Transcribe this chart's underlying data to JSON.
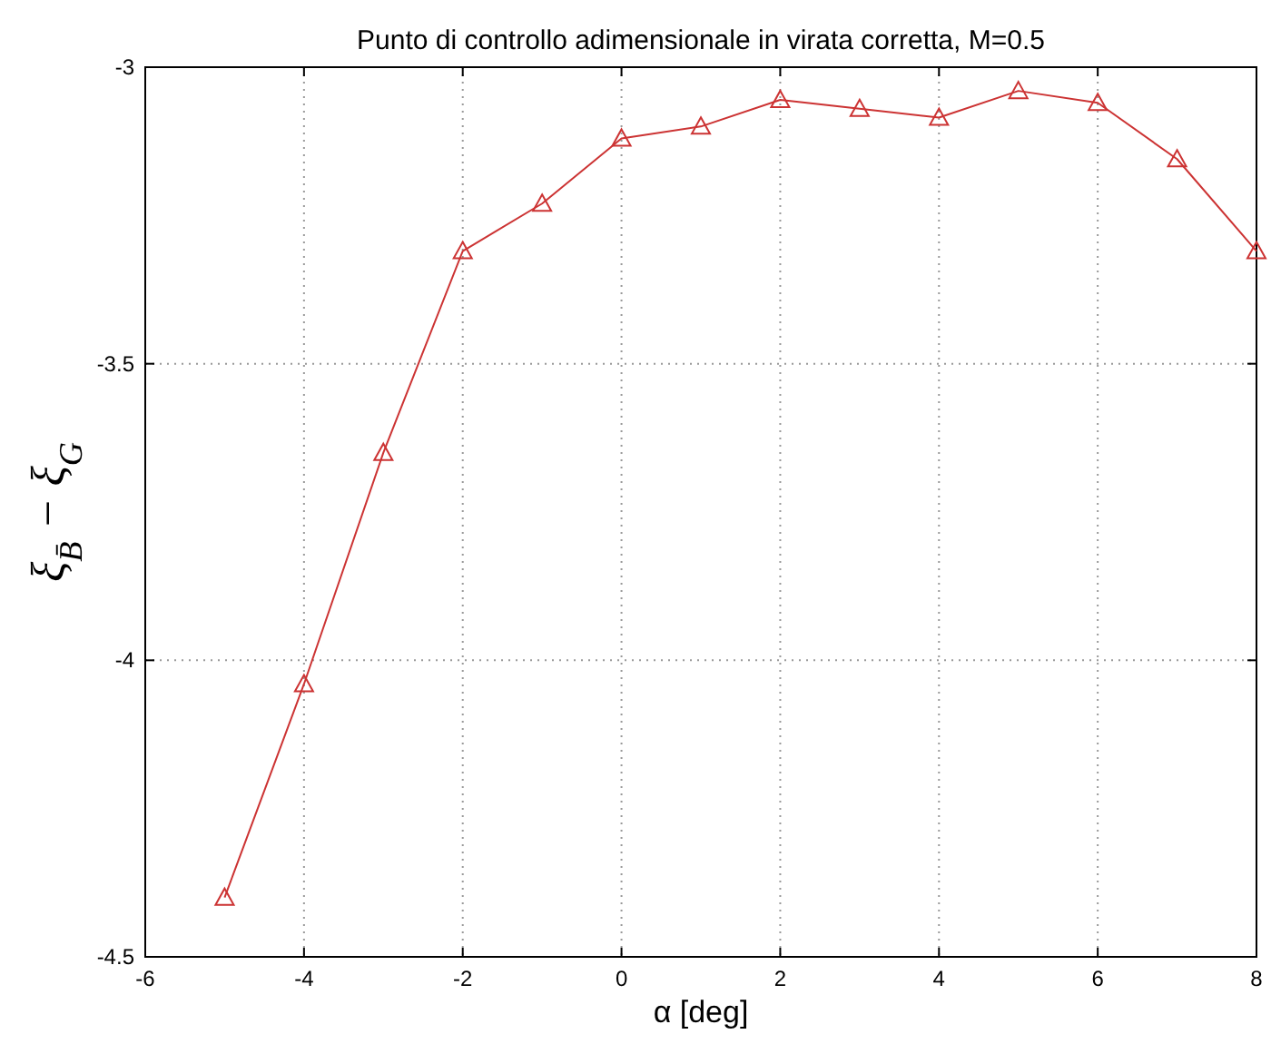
{
  "chart_data": {
    "type": "line",
    "title": "Punto di controllo adimensionale in virata corretta, M=0.5",
    "xlabel": "α  [deg]",
    "ylabel": "ξ$_{B̄}$ − ξ$_{G}$",
    "x": [
      -5,
      -4,
      -3,
      -2,
      -1,
      0,
      1,
      2,
      3,
      4,
      5,
      6,
      7,
      8
    ],
    "series": [
      {
        "color": "#cc3333",
        "values": [
          -4.4,
          -4.04,
          -3.65,
          -3.31,
          -3.23,
          -3.12,
          -3.1,
          -3.055,
          -3.07,
          -3.085,
          -3.04,
          -3.06,
          -3.155,
          -3.31
        ]
      }
    ],
    "xlim": [
      -6,
      8
    ],
    "xticks": [
      -6,
      -4,
      -2,
      0,
      2,
      4,
      6,
      8
    ],
    "ylim": [
      -4.5,
      -3
    ],
    "yticks": [
      -4.5,
      -4,
      -3.5,
      -3
    ],
    "grid": true,
    "marker": "triangle",
    "line_style": "solid"
  }
}
